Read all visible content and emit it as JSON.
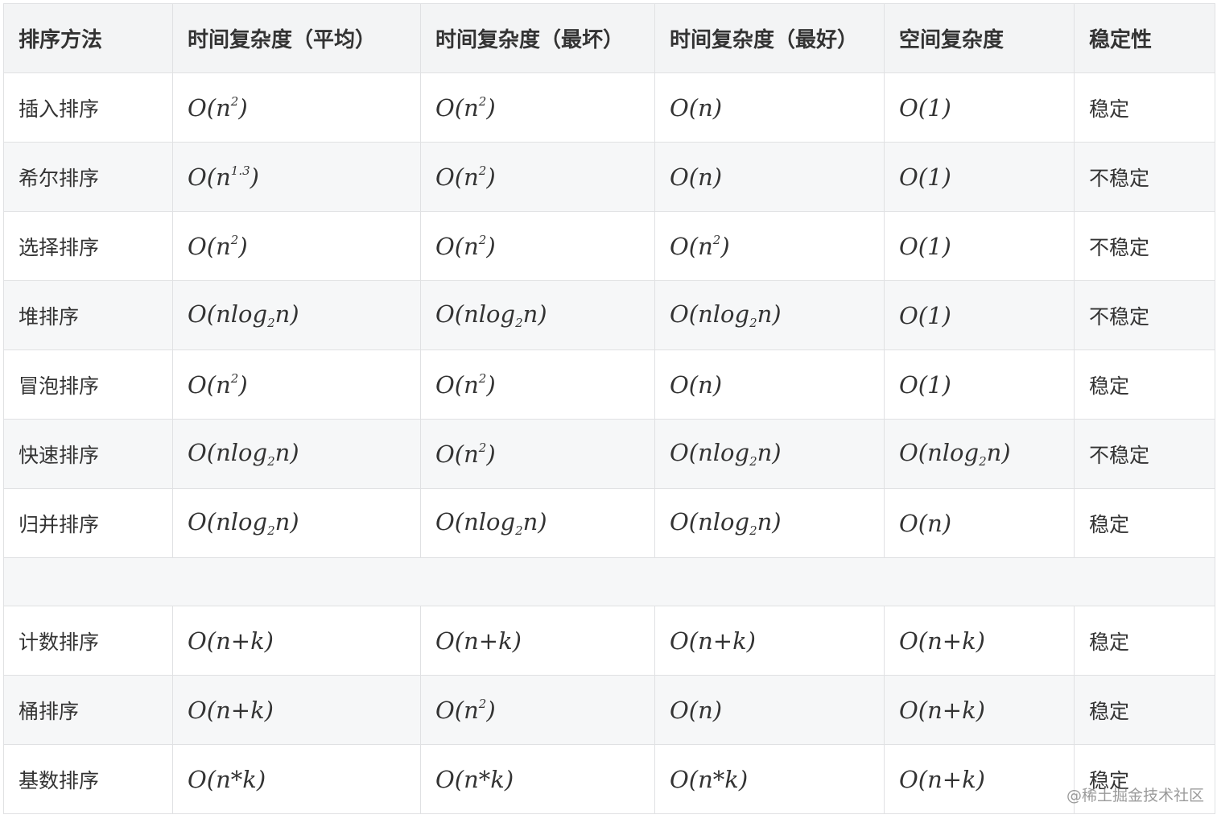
{
  "table": {
    "headers": [
      "排序方法",
      "时间复杂度（平均）",
      "时间复杂度（最坏）",
      "时间复杂度（最好）",
      "空间复杂度",
      "稳定性"
    ],
    "rows": [
      {
        "name": "插入排序",
        "cells": [
          {
            "pre": "O(n",
            "sup": "2",
            "post": ")"
          },
          {
            "pre": "O(n",
            "sup": "2",
            "post": ")"
          },
          {
            "pre": "O(n)"
          },
          {
            "pre": "O(1)"
          }
        ],
        "stability": "稳定"
      },
      {
        "name": "希尔排序",
        "cells": [
          {
            "pre": "O(n",
            "sup": "1.3",
            "post": ")"
          },
          {
            "pre": "O(n",
            "sup": "2",
            "post": ")"
          },
          {
            "pre": "O(n)"
          },
          {
            "pre": "O(1)"
          }
        ],
        "stability": "不稳定"
      },
      {
        "name": "选择排序",
        "cells": [
          {
            "pre": "O(n",
            "sup": "2",
            "post": ")"
          },
          {
            "pre": "O(n",
            "sup": "2",
            "post": ")"
          },
          {
            "pre": "O(n",
            "sup": "2",
            "post": ")"
          },
          {
            "pre": "O(1)"
          }
        ],
        "stability": "不稳定"
      },
      {
        "name": "堆排序",
        "cells": [
          {
            "pre": "O(nlog",
            "sub": "2",
            "post": "n)"
          },
          {
            "pre": "O(nlog",
            "sub": "2",
            "post": "n)"
          },
          {
            "pre": "O(nlog",
            "sub": "2",
            "post": "n)"
          },
          {
            "pre": "O(1)"
          }
        ],
        "stability": "不稳定"
      },
      {
        "name": "冒泡排序",
        "cells": [
          {
            "pre": "O(n",
            "sup": "2",
            "post": ")"
          },
          {
            "pre": "O(n",
            "sup": "2",
            "post": ")"
          },
          {
            "pre": "O(n)"
          },
          {
            "pre": "O(1)"
          }
        ],
        "stability": "稳定"
      },
      {
        "name": "快速排序",
        "cells": [
          {
            "pre": "O(nlog",
            "sub": "2",
            "post": "n)"
          },
          {
            "pre": "O(n",
            "sup": "2",
            "post": ")"
          },
          {
            "pre": "O(nlog",
            "sub": "2",
            "post": "n)"
          },
          {
            "pre": "O(nlog",
            "sub": "2",
            "post": "n)"
          }
        ],
        "stability": "不稳定"
      },
      {
        "name": "归并排序",
        "cells": [
          {
            "pre": "O(nlog",
            "sub": "2",
            "post": "n)"
          },
          {
            "pre": "O(nlog",
            "sub": "2",
            "post": "n)"
          },
          {
            "pre": "O(nlog",
            "sub": "2",
            "post": "n)"
          },
          {
            "pre": "O(n)"
          }
        ],
        "stability": "稳定"
      },
      null,
      {
        "name": "计数排序",
        "cells": [
          {
            "pre": "O(n+k)"
          },
          {
            "pre": "O(n+k)"
          },
          {
            "pre": "O(n+k)"
          },
          {
            "pre": "O(n+k)"
          }
        ],
        "stability": "稳定"
      },
      {
        "name": "桶排序",
        "cells": [
          {
            "pre": "O(n+k)"
          },
          {
            "pre": "O(n",
            "sup": "2",
            "post": ")"
          },
          {
            "pre": "O(n)"
          },
          {
            "pre": "O(n+k)"
          }
        ],
        "stability": "稳定"
      },
      {
        "name": "基数排序",
        "cells": [
          {
            "pre": "O(n*k)"
          },
          {
            "pre": "O(n*k)"
          },
          {
            "pre": "O(n*k)"
          },
          {
            "pre": "O(n+k)"
          }
        ],
        "stability": "稳定"
      }
    ]
  },
  "watermark": "@稀土掘金技术社区",
  "colors": {
    "header_bg": "#f3f4f5",
    "alt_row_bg": "#f6f7f8",
    "border": "#e0e1e3",
    "text": "#333333"
  }
}
